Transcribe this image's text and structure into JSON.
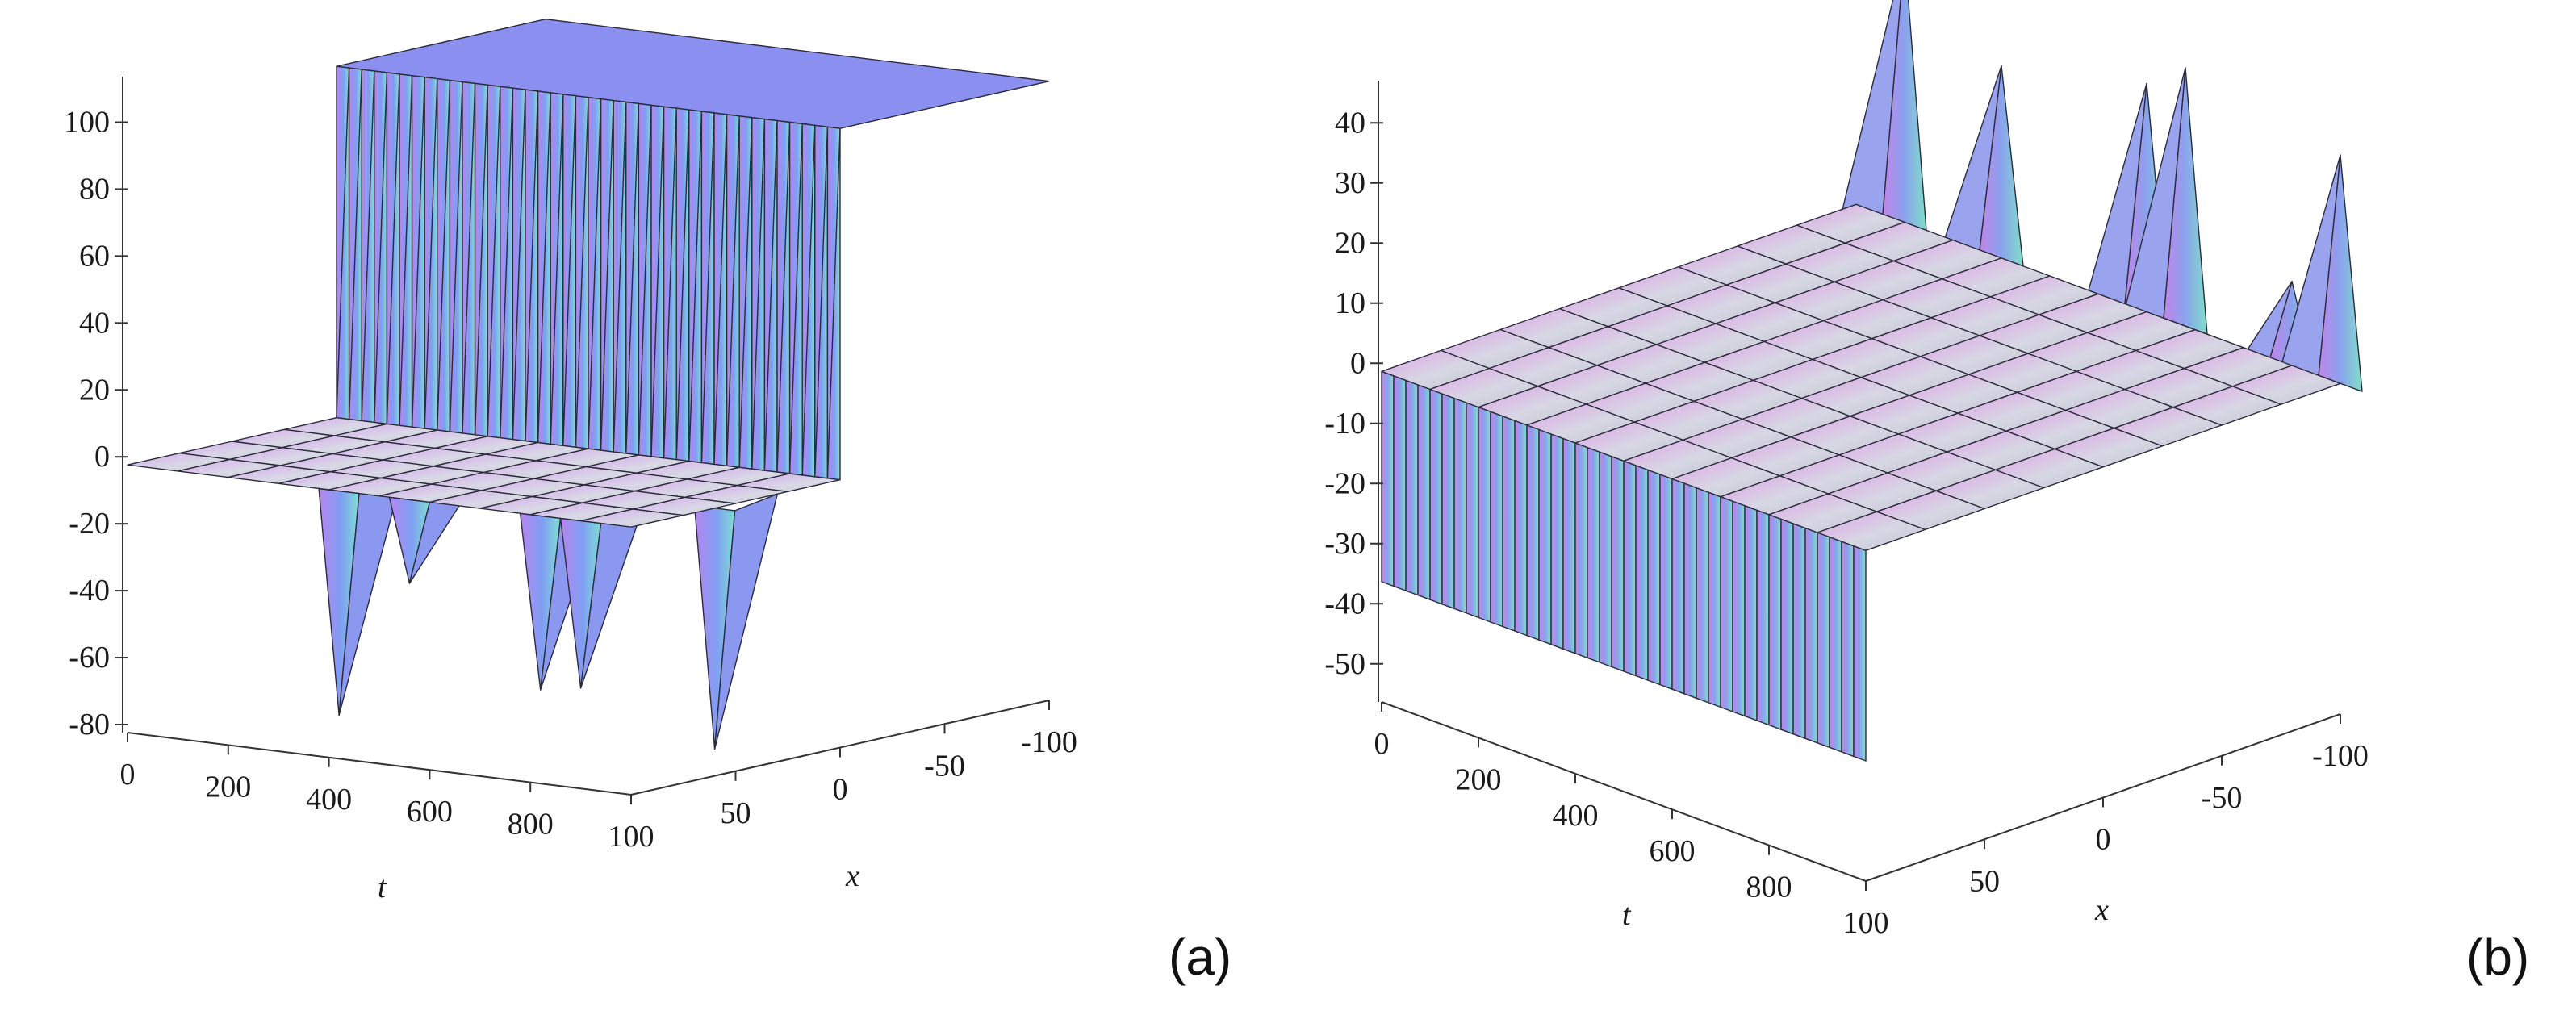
{
  "chart_data": [
    {
      "type": "surface",
      "panel_label": "(a)",
      "xlabel": "t",
      "ylabel": "x",
      "t_ticks": [
        "0",
        "200",
        "400",
        "600",
        "800"
      ],
      "x_ticks": [
        "100",
        "50",
        "0",
        "-50",
        "-100"
      ],
      "z_ticks": [
        "100",
        "80",
        "60",
        "40",
        "20",
        "0",
        "-20",
        "-40",
        "-60",
        "-80"
      ],
      "t_range": [
        0,
        1000
      ],
      "x_range": [
        -100,
        100
      ],
      "z_range": [
        -80,
        110
      ],
      "grid": false,
      "colors": {
        "low": "#b784f0",
        "mid": "#7f9ef2",
        "high": "#7fe0d4",
        "plateau": "#c9c9d8"
      },
      "surface": {
        "description_free": true,
        "t_values": [
          0,
          100,
          200,
          300,
          400,
          500,
          600,
          700,
          800,
          900,
          1000
        ],
        "x_values": [
          -100,
          -75,
          -50,
          -25,
          0,
          25,
          50,
          75,
          100
        ],
        "low_level": 0,
        "high_level": 105,
        "step_x": 0,
        "spikes": [
          {
            "t": 420,
            "x": 100,
            "z": -67
          },
          {
            "t": 560,
            "x": 100,
            "z": -25
          },
          {
            "t": 820,
            "x": 100,
            "z": -52
          },
          {
            "t": 900,
            "x": 100,
            "z": -50
          },
          {
            "t": 1000,
            "x": 60,
            "z": -72
          }
        ]
      }
    },
    {
      "type": "surface",
      "panel_label": "(b)",
      "xlabel": "t",
      "ylabel": "x",
      "t_ticks": [
        "0",
        "200",
        "400",
        "600",
        "800"
      ],
      "x_ticks": [
        "100",
        "50",
        "0",
        "-50",
        "-100"
      ],
      "z_ticks": [
        "40",
        "30",
        "20",
        "10",
        "0",
        "-10",
        "-20",
        "-30",
        "-40",
        "-50"
      ],
      "t_range": [
        0,
        1000
      ],
      "x_range": [
        -100,
        100
      ],
      "z_range": [
        -55,
        45
      ],
      "grid": false,
      "colors": {
        "low": "#c184e8",
        "mid": "#8aa2ee",
        "high": "#7fe0c8",
        "plateau": "#c9c9d8"
      },
      "surface": {
        "t_values": [
          0,
          100,
          200,
          300,
          400,
          500,
          600,
          700,
          800,
          900,
          1000
        ],
        "x_values": [
          -100,
          -75,
          -50,
          -25,
          0,
          25,
          50,
          75,
          100
        ],
        "plateau_level": 0,
        "wall_level": -35,
        "spikes": [
          {
            "t": 100,
            "x": -100,
            "z": 45
          },
          {
            "t": 300,
            "x": -100,
            "z": 32
          },
          {
            "t": 600,
            "x": -100,
            "z": 38
          },
          {
            "t": 680,
            "x": -100,
            "z": 43
          },
          {
            "t": 900,
            "x": -100,
            "z": 14
          },
          {
            "t": 1000,
            "x": -100,
            "z": 38
          }
        ]
      }
    }
  ]
}
